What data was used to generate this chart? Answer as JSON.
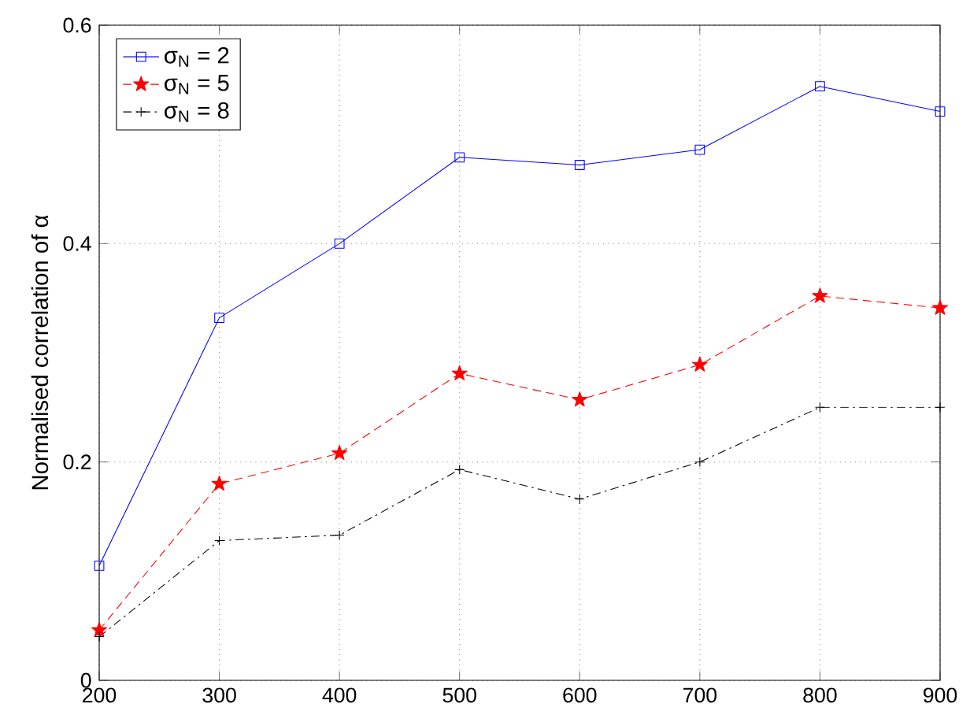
{
  "chart_data": {
    "type": "line",
    "ylabel": "Normalised correlation of α",
    "x": [
      200,
      300,
      400,
      500,
      600,
      700,
      800,
      900
    ],
    "series": [
      {
        "name": "σ$_{N}$ = 2",
        "color": "#0000ff",
        "marker": "square",
        "line_style": "solid",
        "values": [
          0.105,
          0.332,
          0.4,
          0.479,
          0.472,
          0.486,
          0.544,
          0.521
        ]
      },
      {
        "name": "σ$_{N}$ = 5",
        "color": "#ff0000",
        "marker": "star",
        "line_style": "dashed",
        "values": [
          0.046,
          0.18,
          0.208,
          0.281,
          0.257,
          0.289,
          0.352,
          0.341
        ]
      },
      {
        "name": "σ$_{N}$ = 8",
        "color": "#000000",
        "marker": "cross",
        "line_style": "dashdot",
        "values": [
          0.04,
          0.128,
          0.133,
          0.193,
          0.166,
          0.2,
          0.25,
          0.25
        ]
      }
    ],
    "xlim": [
      200,
      900
    ],
    "xticks": [
      200,
      300,
      400,
      500,
      600,
      700,
      800,
      900
    ],
    "ylim": [
      0,
      0.6
    ],
    "yticks": [
      0,
      0.2,
      0.4,
      0.6
    ],
    "grid": true,
    "legend": "top left"
  }
}
